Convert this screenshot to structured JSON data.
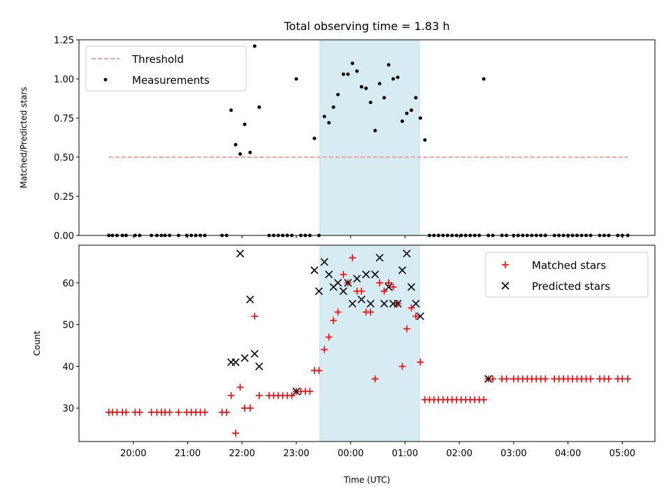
{
  "chart_data": [
    {
      "type": "scatter",
      "title": "Total observing time = 1.83 h",
      "xlabel": "",
      "ylabel": "Matched/Predicted stars",
      "xlim": [
        19.0,
        5.6
      ],
      "ylim": [
        0,
        1.25
      ],
      "yticks": [
        "0.00",
        "0.25",
        "0.50",
        "0.75",
        "1.00",
        "1.25"
      ],
      "highlight_span": [
        "23:26",
        "01:16"
      ],
      "highlight_color": "#add8e6",
      "legend": {
        "placement": "upper-left",
        "entries": [
          "Threshold",
          "Measurements"
        ]
      },
      "series": [
        {
          "name": "Threshold",
          "kind": "dashed-line",
          "color": "#ff7f7f",
          "x": [
            "19:33",
            "05:06"
          ],
          "y": [
            0.5,
            0.5
          ]
        },
        {
          "name": "Measurements",
          "kind": "dots",
          "color": "#000000",
          "x": [
            "19:33",
            "19:37",
            "19:42",
            "19:48",
            "19:52",
            "20:02",
            "20:07",
            "20:20",
            "20:26",
            "20:31",
            "20:35",
            "20:40",
            "20:50",
            "20:59",
            "21:04",
            "21:09",
            "21:14",
            "21:19",
            "21:38",
            "21:43",
            "21:48",
            "21:53",
            "21:58",
            "22:03",
            "22:09",
            "22:14",
            "22:19",
            "22:30",
            "22:35",
            "22:40",
            "22:45",
            "22:50",
            "22:55",
            "23:00",
            "23:05",
            "23:10",
            "23:15",
            "23:20",
            "23:25",
            "23:31",
            "23:36",
            "23:41",
            "23:46",
            "23:52",
            "23:57",
            "00:02",
            "00:07",
            "00:12",
            "00:17",
            "00:22",
            "00:27",
            "00:32",
            "00:37",
            "00:42",
            "00:47",
            "00:52",
            "00:57",
            "01:02",
            "01:07",
            "01:12",
            "01:17",
            "01:22",
            "01:27",
            "01:32",
            "01:37",
            "01:42",
            "01:47",
            "01:52",
            "01:57",
            "02:02",
            "02:07",
            "02:12",
            "02:17",
            "02:22",
            "02:27",
            "02:32",
            "02:37",
            "02:47",
            "02:52",
            "03:00",
            "03:05",
            "03:10",
            "03:15",
            "03:20",
            "03:25",
            "03:30",
            "03:35",
            "03:45",
            "03:50",
            "03:55",
            "04:00",
            "04:05",
            "04:10",
            "04:15",
            "04:20",
            "04:25",
            "04:35",
            "04:40",
            "04:45",
            "04:55",
            "05:00",
            "05:06"
          ],
          "y": [
            0,
            0,
            0,
            0,
            0,
            0,
            0,
            0,
            0,
            0,
            0,
            0,
            0,
            0,
            0,
            0,
            0,
            0,
            0,
            0,
            0.8,
            0.58,
            0.52,
            0.71,
            0.53,
            1.21,
            0.82,
            0,
            0,
            0,
            0,
            0,
            0,
            1.0,
            0,
            0,
            0,
            0.62,
            0,
            0.76,
            0.72,
            0.82,
            0.9,
            1.03,
            1.03,
            1.1,
            1.05,
            0.95,
            0.94,
            0.85,
            0.67,
            0.97,
            0.88,
            1.09,
            1.0,
            1.01,
            0.73,
            0.78,
            0.8,
            0.88,
            0.75,
            0.61,
            0,
            0,
            0,
            0,
            0,
            0,
            0,
            0,
            0,
            0,
            0,
            0,
            1.0,
            0,
            0,
            0,
            0,
            0,
            0,
            0,
            0,
            0,
            0,
            0,
            0,
            0,
            0,
            0,
            0,
            0,
            0,
            0,
            0,
            0,
            0,
            0,
            0,
            0,
            0,
            0
          ]
        }
      ]
    },
    {
      "type": "scatter",
      "title": "",
      "xlabel": "Time (UTC)",
      "ylabel": "Count",
      "xlim": [
        19.0,
        5.6
      ],
      "ylim": [
        22,
        69
      ],
      "xticks": [
        "20:00",
        "21:00",
        "22:00",
        "23:00",
        "00:00",
        "01:00",
        "02:00",
        "03:00",
        "04:00",
        "05:00"
      ],
      "yticks": [
        "30",
        "40",
        "50",
        "60"
      ],
      "highlight_span": [
        "23:26",
        "01:16"
      ],
      "highlight_color": "#add8e6",
      "legend": {
        "placement": "upper-right",
        "entries": [
          "Matched stars",
          "Predicted stars"
        ]
      },
      "series": [
        {
          "name": "Matched stars",
          "kind": "plus",
          "color": "#ff0000",
          "x": [
            "19:33",
            "19:37",
            "19:42",
            "19:48",
            "19:52",
            "20:02",
            "20:07",
            "20:20",
            "20:26",
            "20:31",
            "20:35",
            "20:40",
            "20:50",
            "20:59",
            "21:04",
            "21:09",
            "21:14",
            "21:19",
            "21:38",
            "21:43",
            "21:48",
            "21:53",
            "21:58",
            "22:03",
            "22:09",
            "22:14",
            "22:19",
            "22:30",
            "22:35",
            "22:40",
            "22:45",
            "22:50",
            "22:55",
            "23:00",
            "23:05",
            "23:10",
            "23:15",
            "23:20",
            "23:25",
            "23:31",
            "23:36",
            "23:41",
            "23:46",
            "23:52",
            "23:57",
            "00:02",
            "00:07",
            "00:12",
            "00:17",
            "00:22",
            "00:27",
            "00:32",
            "00:37",
            "00:42",
            "00:47",
            "00:52",
            "00:57",
            "01:02",
            "01:07",
            "01:12",
            "01:17",
            "01:22",
            "01:27",
            "01:32",
            "01:37",
            "01:42",
            "01:47",
            "01:52",
            "01:57",
            "02:02",
            "02:07",
            "02:12",
            "02:17",
            "02:22",
            "02:27",
            "02:32",
            "02:37",
            "02:47",
            "02:52",
            "03:00",
            "03:05",
            "03:10",
            "03:15",
            "03:20",
            "03:25",
            "03:30",
            "03:35",
            "03:45",
            "03:50",
            "03:55",
            "04:00",
            "04:05",
            "04:10",
            "04:15",
            "04:20",
            "04:25",
            "04:35",
            "04:40",
            "04:45",
            "04:55",
            "05:00",
            "05:06"
          ],
          "y": [
            29,
            29,
            29,
            29,
            29,
            29,
            29,
            29,
            29,
            29,
            29,
            29,
            29,
            29,
            29,
            29,
            29,
            29,
            29,
            29,
            33,
            24,
            35,
            30,
            30,
            52,
            33,
            33,
            33,
            33,
            33,
            33,
            33,
            34,
            34,
            34,
            34,
            39,
            39,
            44,
            47,
            51,
            53,
            62,
            60,
            66,
            58,
            58,
            53,
            53,
            37,
            60,
            58,
            60,
            59,
            55,
            40,
            49,
            54,
            52,
            41,
            32,
            32,
            32,
            32,
            32,
            32,
            32,
            32,
            32,
            32,
            32,
            32,
            32,
            32,
            37,
            37,
            37,
            37,
            37,
            37,
            37,
            37,
            37,
            37,
            37,
            37,
            37,
            37,
            37,
            37,
            37,
            37,
            37,
            37,
            37,
            37,
            37,
            37,
            37,
            37,
            37
          ]
        },
        {
          "name": "Predicted stars",
          "kind": "cross",
          "color": "#000000",
          "x": [
            "21:48",
            "21:53",
            "21:58",
            "22:03",
            "22:09",
            "22:14",
            "22:19",
            "23:00",
            "23:20",
            "23:25",
            "23:31",
            "23:36",
            "23:41",
            "23:46",
            "23:52",
            "23:57",
            "00:02",
            "00:07",
            "00:12",
            "00:17",
            "00:22",
            "00:27",
            "00:32",
            "00:37",
            "00:42",
            "00:47",
            "00:52",
            "00:57",
            "01:02",
            "01:07",
            "01:12",
            "01:17",
            "02:32"
          ],
          "y": [
            41,
            41,
            67,
            42,
            56,
            43,
            40,
            34,
            63,
            58,
            65,
            62,
            59,
            60,
            58,
            60,
            55,
            61,
            56,
            62,
            55,
            62,
            66,
            55,
            59,
            55,
            55,
            63,
            67,
            59,
            55,
            52,
            37
          ]
        }
      ]
    }
  ]
}
